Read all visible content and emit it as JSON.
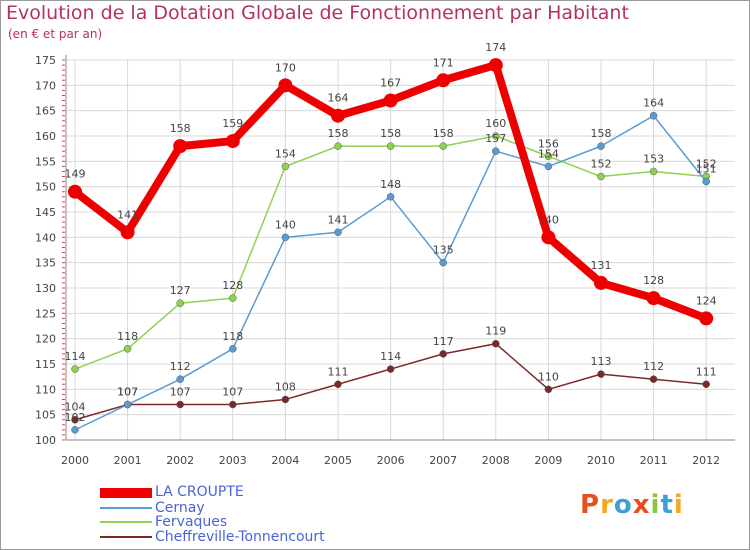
{
  "title": "Evolution de la Dotation Globale de Fonctionnement par Habitant",
  "subtitle": "(en € et par an)",
  "logo": "Proxiti",
  "colors": {
    "title": "#b5306a",
    "grid": "#d8d8d8",
    "axis_tick": "#cc4444",
    "label": "#444444",
    "legend_text": "#4a63d8"
  },
  "chart_data": {
    "type": "line",
    "x": [
      2000,
      2001,
      2002,
      2003,
      2004,
      2005,
      2006,
      2007,
      2008,
      2009,
      2010,
      2011,
      2012
    ],
    "ylim": [
      100,
      175
    ],
    "yticks": [
      100,
      105,
      110,
      115,
      120,
      125,
      130,
      135,
      140,
      145,
      150,
      155,
      160,
      165,
      170,
      175
    ],
    "grid": true,
    "legend_position": "bottom-left",
    "series": [
      {
        "name": "LA CROUPTE",
        "color": "#ee0000",
        "values": [
          149,
          141,
          158,
          159,
          170,
          164,
          167,
          171,
          174,
          140,
          131,
          128,
          124
        ]
      },
      {
        "name": "Cernay",
        "color": "#5b9bd5",
        "values": [
          102,
          107,
          112,
          118,
          140,
          141,
          148,
          135,
          157,
          154,
          158,
          164,
          151
        ]
      },
      {
        "name": "Fervaques",
        "color": "#8fd14f",
        "values": [
          114,
          118,
          127,
          128,
          154,
          158,
          158,
          158,
          160,
          156,
          152,
          153,
          152
        ]
      },
      {
        "name": "Cheffreville-Tonnencourt",
        "color": "#7a2828",
        "values": [
          104,
          107,
          107,
          107,
          108,
          111,
          114,
          117,
          119,
          110,
          113,
          112,
          111
        ]
      }
    ]
  }
}
